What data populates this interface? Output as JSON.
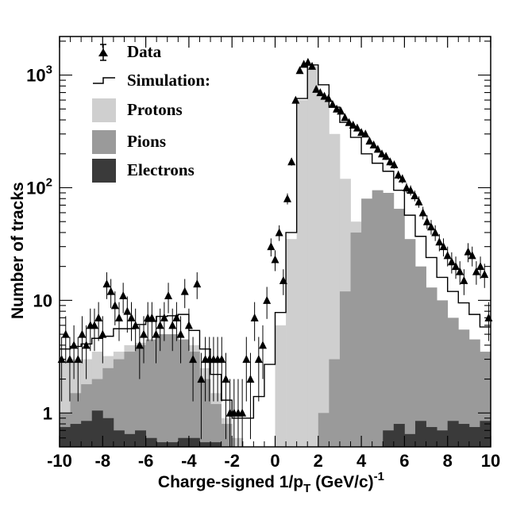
{
  "chart_data": {
    "type": "histogram",
    "xlabel_main": "Charge-signed 1/p",
    "xlabel_sub": "T",
    "xlabel_unit": " (GeV/c)",
    "xlabel_exp": "-1",
    "ylabel": "Number of tracks",
    "xlim": [
      -10,
      10
    ],
    "ylim": [
      0.5,
      2200
    ],
    "yscale": "log",
    "x_ticks": [
      -10,
      -8,
      -6,
      -4,
      -2,
      0,
      2,
      4,
      6,
      8,
      10
    ],
    "y_tick_labels": [
      {
        "value": 1,
        "base": "1",
        "exp": ""
      },
      {
        "value": 10,
        "base": "10",
        "exp": ""
      },
      {
        "value": 100,
        "base": "10",
        "exp": "2"
      },
      {
        "value": 1000,
        "base": "10",
        "exp": "3"
      }
    ],
    "bin_width": 0.5,
    "bin_left_edges": [
      -10,
      -9.5,
      -9,
      -8.5,
      -8,
      -7.5,
      -7,
      -6.5,
      -6,
      -5.5,
      -5,
      -4.5,
      -4,
      -3.5,
      -3,
      -2.5,
      -2,
      -1.5,
      -1,
      -0.5,
      0,
      0.5,
      1,
      1.5,
      2,
      2.5,
      3,
      3.5,
      4,
      4.5,
      5,
      5.5,
      6,
      6.5,
      7,
      7.5,
      8,
      8.5,
      9,
      9.5
    ],
    "series": [
      {
        "name": "Protons",
        "color": "#cfcfcf",
        "values": [
          2.8,
          3.0,
          3.0,
          3.5,
          3.2,
          3.5,
          4.0,
          4.2,
          4.5,
          5.0,
          5.0,
          4.5,
          4.0,
          2.5,
          1.5,
          0.9,
          0.6,
          0.5,
          0.5,
          0.5,
          6,
          35,
          600,
          1200,
          650,
          300,
          120,
          50,
          20,
          6,
          2,
          0.8,
          0.5,
          0.5,
          0.5,
          0.5,
          0.5,
          0.5,
          0.5,
          0.5
        ]
      },
      {
        "name": "Pions",
        "color": "#9a9a9a",
        "values": [
          1.0,
          1.5,
          1.8,
          2.0,
          2.5,
          3.0,
          3.5,
          4.0,
          4.5,
          5.0,
          5.0,
          4.5,
          3.5,
          2.0,
          1.2,
          0.8,
          0.5,
          0.5,
          0.5,
          0.5,
          0.5,
          0.5,
          0.5,
          0.5,
          1.0,
          3.0,
          12,
          40,
          80,
          95,
          90,
          65,
          35,
          20,
          13,
          10,
          7,
          5.5,
          4.5,
          3.5
        ]
      },
      {
        "name": "Electrons",
        "color": "#3a3a3a",
        "values": [
          0.75,
          0.8,
          0.85,
          1.05,
          0.9,
          0.7,
          0.65,
          0.7,
          0.6,
          0.55,
          0.55,
          0.6,
          0.6,
          0.55,
          0.55,
          0.5,
          0.5,
          0.5,
          0.5,
          0.5,
          0.5,
          0.5,
          0.5,
          0.5,
          0.5,
          0.5,
          0.5,
          0.5,
          0.5,
          0.5,
          0.7,
          0.8,
          0.65,
          0.85,
          0.75,
          0.7,
          0.85,
          0.8,
          0.75,
          0.85
        ]
      },
      {
        "name": "Simulation:",
        "color": "#000000",
        "values": [
          3.7,
          3.9,
          4.1,
          4.6,
          4.8,
          5.6,
          5.6,
          6.1,
          6.5,
          7.2,
          7.3,
          7.5,
          5.4,
          3.7,
          2.2,
          1.3,
          0.9,
          0.9,
          1.4,
          2.7,
          7.8,
          40,
          620,
          1230,
          820,
          520,
          380,
          280,
          200,
          165,
          140,
          95,
          57,
          37,
          24,
          16,
          12,
          9.5,
          7.5,
          5.8
        ]
      },
      {
        "name": "Data",
        "color": "#000000",
        "values": [
          3,
          5,
          3,
          4,
          3,
          5,
          4,
          6,
          6,
          7,
          5,
          14,
          12,
          9,
          7,
          11,
          8,
          7,
          6,
          4,
          5,
          7,
          7,
          5,
          6,
          7,
          11,
          6,
          7,
          5,
          12,
          6,
          3,
          14,
          2,
          3,
          3,
          3,
          3,
          3,
          2,
          1,
          1,
          1,
          1,
          3,
          2,
          7,
          3,
          4,
          10,
          30,
          23,
          40,
          15,
          80,
          170,
          600,
          1100,
          1250,
          1300,
          1200,
          750,
          700,
          650,
          620,
          550,
          500,
          480,
          420,
          380,
          360,
          340,
          310,
          300,
          260,
          240,
          220,
          200,
          190,
          170,
          160,
          130,
          120,
          100,
          95,
          85,
          75,
          60,
          50,
          45,
          40,
          33,
          30,
          25,
          22,
          20,
          18,
          15,
          27,
          25,
          18,
          20,
          17,
          7
        ]
      }
    ],
    "legend": [
      {
        "label": "Data",
        "marker": "triangle-errorbar"
      },
      {
        "label": "Simulation:",
        "marker": "step-line"
      },
      {
        "label": "Protons",
        "marker": "box",
        "color": "#cfcfcf"
      },
      {
        "label": "Pions",
        "marker": "box",
        "color": "#9a9a9a"
      },
      {
        "label": "Electrons",
        "marker": "box",
        "color": "#3a3a3a"
      }
    ]
  }
}
